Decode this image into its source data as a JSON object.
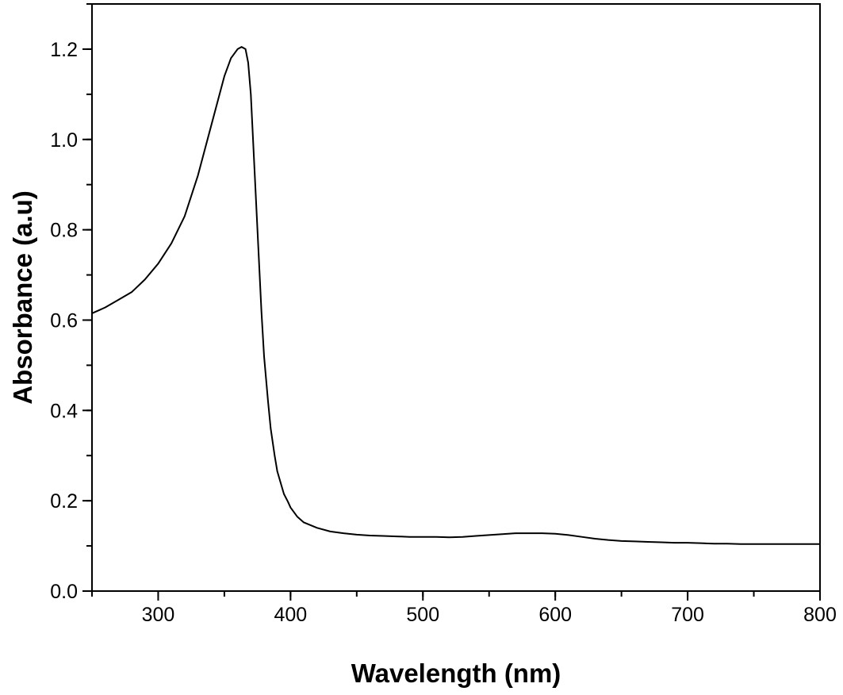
{
  "chart_data": {
    "type": "line",
    "title": "",
    "xlabel": "Wavelength (nm)",
    "ylabel": "Absorbance (a.u)",
    "xlim": [
      250,
      800
    ],
    "ylim": [
      0.0,
      1.3
    ],
    "x_ticks": [
      300,
      400,
      500,
      600,
      700,
      800
    ],
    "x_tick_labels": [
      "300",
      "400",
      "500",
      "600",
      "700",
      "800"
    ],
    "x_minor_step": 50,
    "y_ticks": [
      0.0,
      0.2,
      0.4,
      0.6,
      0.8,
      1.0,
      1.2
    ],
    "y_tick_labels": [
      "0.0",
      "0.2",
      "0.4",
      "0.6",
      "0.8",
      "1.0",
      "1.2"
    ],
    "y_minor_step": 0.1,
    "grid": false,
    "legend": "none",
    "line_color": "#000000",
    "series": [
      {
        "x": [
          250,
          260,
          270,
          280,
          290,
          300,
          310,
          320,
          330,
          340,
          350,
          355,
          360,
          363,
          366,
          368,
          370,
          372,
          375,
          378,
          380,
          383,
          385,
          388,
          390,
          393,
          395,
          398,
          400,
          405,
          410,
          420,
          430,
          440,
          450,
          460,
          470,
          480,
          490,
          500,
          510,
          520,
          530,
          540,
          550,
          560,
          570,
          580,
          590,
          600,
          610,
          620,
          630,
          640,
          650,
          660,
          670,
          680,
          690,
          700,
          710,
          720,
          730,
          740,
          750,
          760,
          770,
          780,
          790,
          800
        ],
        "y": [
          0.615,
          0.628,
          0.645,
          0.662,
          0.69,
          0.725,
          0.77,
          0.83,
          0.92,
          1.03,
          1.14,
          1.18,
          1.2,
          1.205,
          1.2,
          1.17,
          1.1,
          0.98,
          0.8,
          0.62,
          0.52,
          0.42,
          0.36,
          0.3,
          0.265,
          0.235,
          0.215,
          0.198,
          0.185,
          0.165,
          0.152,
          0.14,
          0.132,
          0.128,
          0.125,
          0.123,
          0.122,
          0.121,
          0.12,
          0.12,
          0.12,
          0.119,
          0.12,
          0.122,
          0.124,
          0.126,
          0.128,
          0.128,
          0.128,
          0.127,
          0.124,
          0.12,
          0.116,
          0.113,
          0.111,
          0.11,
          0.109,
          0.108,
          0.107,
          0.107,
          0.106,
          0.105,
          0.105,
          0.104,
          0.104,
          0.104,
          0.104,
          0.104,
          0.104,
          0.104
        ]
      }
    ]
  }
}
